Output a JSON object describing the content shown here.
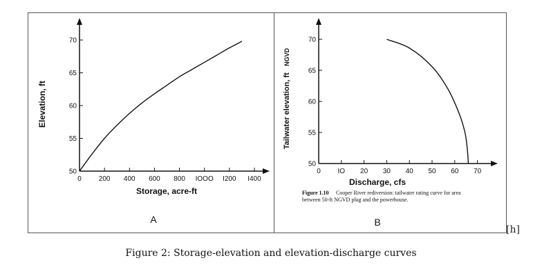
{
  "figure": {
    "caption": "Figure 2: Storage-elevation and elevation-discharge curves",
    "side_note": "[h]"
  },
  "chart_data": [
    {
      "type": "line",
      "panel_label": "A",
      "title": "",
      "xlabel": "Storage, acre-ft",
      "ylabel": "Elevation, ft",
      "xlim": [
        0,
        1450
      ],
      "ylim": [
        50,
        72
      ],
      "xticks": [
        0,
        200,
        400,
        600,
        800,
        1000,
        1200,
        1400
      ],
      "xtick_labels": [
        "0",
        "200",
        "400",
        "600",
        "800",
        "IOOO",
        "I200",
        "I400"
      ],
      "yticks": [
        50,
        55,
        60,
        65,
        70
      ],
      "ytick_labels": [
        "50",
        "55",
        "60",
        "65",
        "70"
      ],
      "grid": false,
      "series": [
        {
          "x": [
            0,
            100,
            200,
            300,
            400,
            500,
            600,
            700,
            800,
            900,
            1000,
            1100,
            1200,
            1300
          ],
          "y": [
            50.0,
            52.6,
            55.0,
            57.0,
            58.8,
            60.4,
            61.8,
            63.1,
            64.4,
            65.5,
            66.6,
            67.7,
            68.8,
            69.8
          ]
        }
      ]
    },
    {
      "type": "line",
      "panel_label": "B",
      "title": "",
      "xlabel": "Discharge, cfs",
      "ylabel": "Tailwater elevation, ft",
      "ylabel_tag": "NGVD",
      "xlim": [
        0,
        75
      ],
      "ylim": [
        50,
        72
      ],
      "xticks": [
        0,
        10,
        20,
        30,
        40,
        50,
        60,
        70
      ],
      "xtick_labels": [
        "0",
        "IO",
        "20",
        "30",
        "40",
        "50",
        "60",
        "70"
      ],
      "yticks": [
        50,
        55,
        60,
        65,
        70
      ],
      "ytick_labels": [
        "50",
        "55",
        "60",
        "65",
        "70"
      ],
      "grid": false,
      "series": [
        {
          "x": [
            30,
            40,
            50,
            57,
            62,
            64.5,
            65.5,
            66
          ],
          "y": [
            70,
            68.6,
            65.6,
            62,
            58,
            55,
            52.5,
            50
          ]
        }
      ],
      "caption_label": "Figure 1.10",
      "caption_line1": "Cooper River rediversion: tailwater rating curve for area",
      "caption_line2": "between 50-ft NGVD plug and the powerhouse."
    }
  ]
}
